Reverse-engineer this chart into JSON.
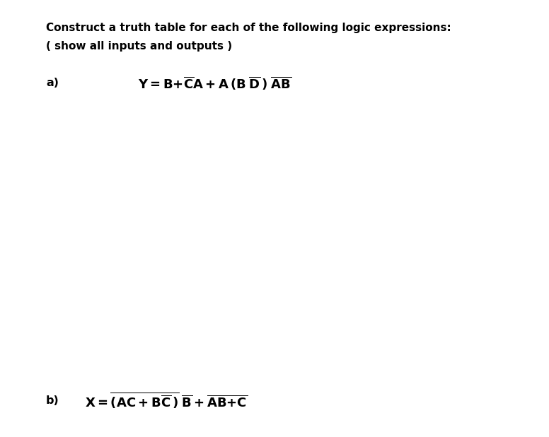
{
  "title_line1": "Construct a truth table for each of the following logic expressions:",
  "title_line2": "( show all inputs and outputs )",
  "background_color": "#ffffff",
  "text_color": "#000000",
  "fig_width": 7.76,
  "fig_height": 6.19,
  "dpi": 100,
  "label_a": "a)",
  "label_b": "b)",
  "fontsize_title": 11.0,
  "fontsize_label": 11.5,
  "fontsize_expr": 13.0
}
